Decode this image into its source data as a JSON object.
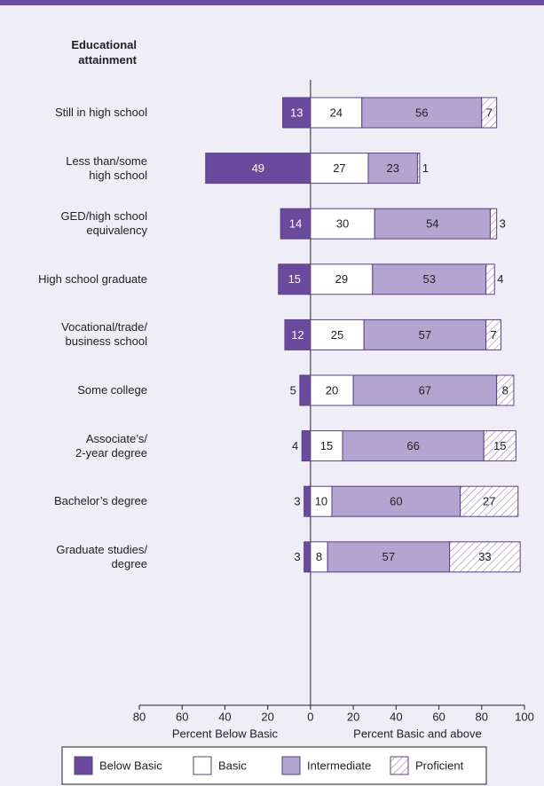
{
  "chart_data": {
    "type": "diverging-stacked-bar",
    "title": "Educational\nattainment",
    "categories": [
      "Still in high school",
      "Less than/some\nhigh school",
      "GED/high school\nequivalency",
      "High school graduate",
      "Vocational/trade/\nbusiness school",
      "Some college",
      "Associate’s/\n2-year degree",
      "Bachelor’s degree",
      "Graduate studies/\ndegree"
    ],
    "series": [
      {
        "name": "Below Basic",
        "color": "#6a4a9c",
        "side": "left",
        "values": [
          13,
          49,
          14,
          15,
          12,
          5,
          4,
          3,
          3
        ]
      },
      {
        "name": "Basic",
        "color": "#ffffff",
        "side": "right",
        "values": [
          24,
          27,
          30,
          29,
          25,
          20,
          15,
          10,
          8
        ]
      },
      {
        "name": "Intermediate",
        "color": "#b2a5cf",
        "side": "right",
        "values": [
          56,
          23,
          54,
          53,
          57,
          67,
          66,
          60,
          57
        ]
      },
      {
        "name": "Proficient",
        "color": "#ffffff",
        "hatch": true,
        "side": "right",
        "values": [
          7,
          1,
          3,
          4,
          7,
          8,
          15,
          27,
          33
        ]
      }
    ],
    "xlim": [
      -80,
      100
    ],
    "xticks": [
      {
        "value": -80,
        "label": "80"
      },
      {
        "value": -60,
        "label": "60"
      },
      {
        "value": -40,
        "label": "40"
      },
      {
        "value": -20,
        "label": "20"
      },
      0,
      20,
      40,
      60,
      80,
      100
    ],
    "xlabel_left": "Percent Below Basic",
    "xlabel_right": "Percent Basic and above"
  }
}
